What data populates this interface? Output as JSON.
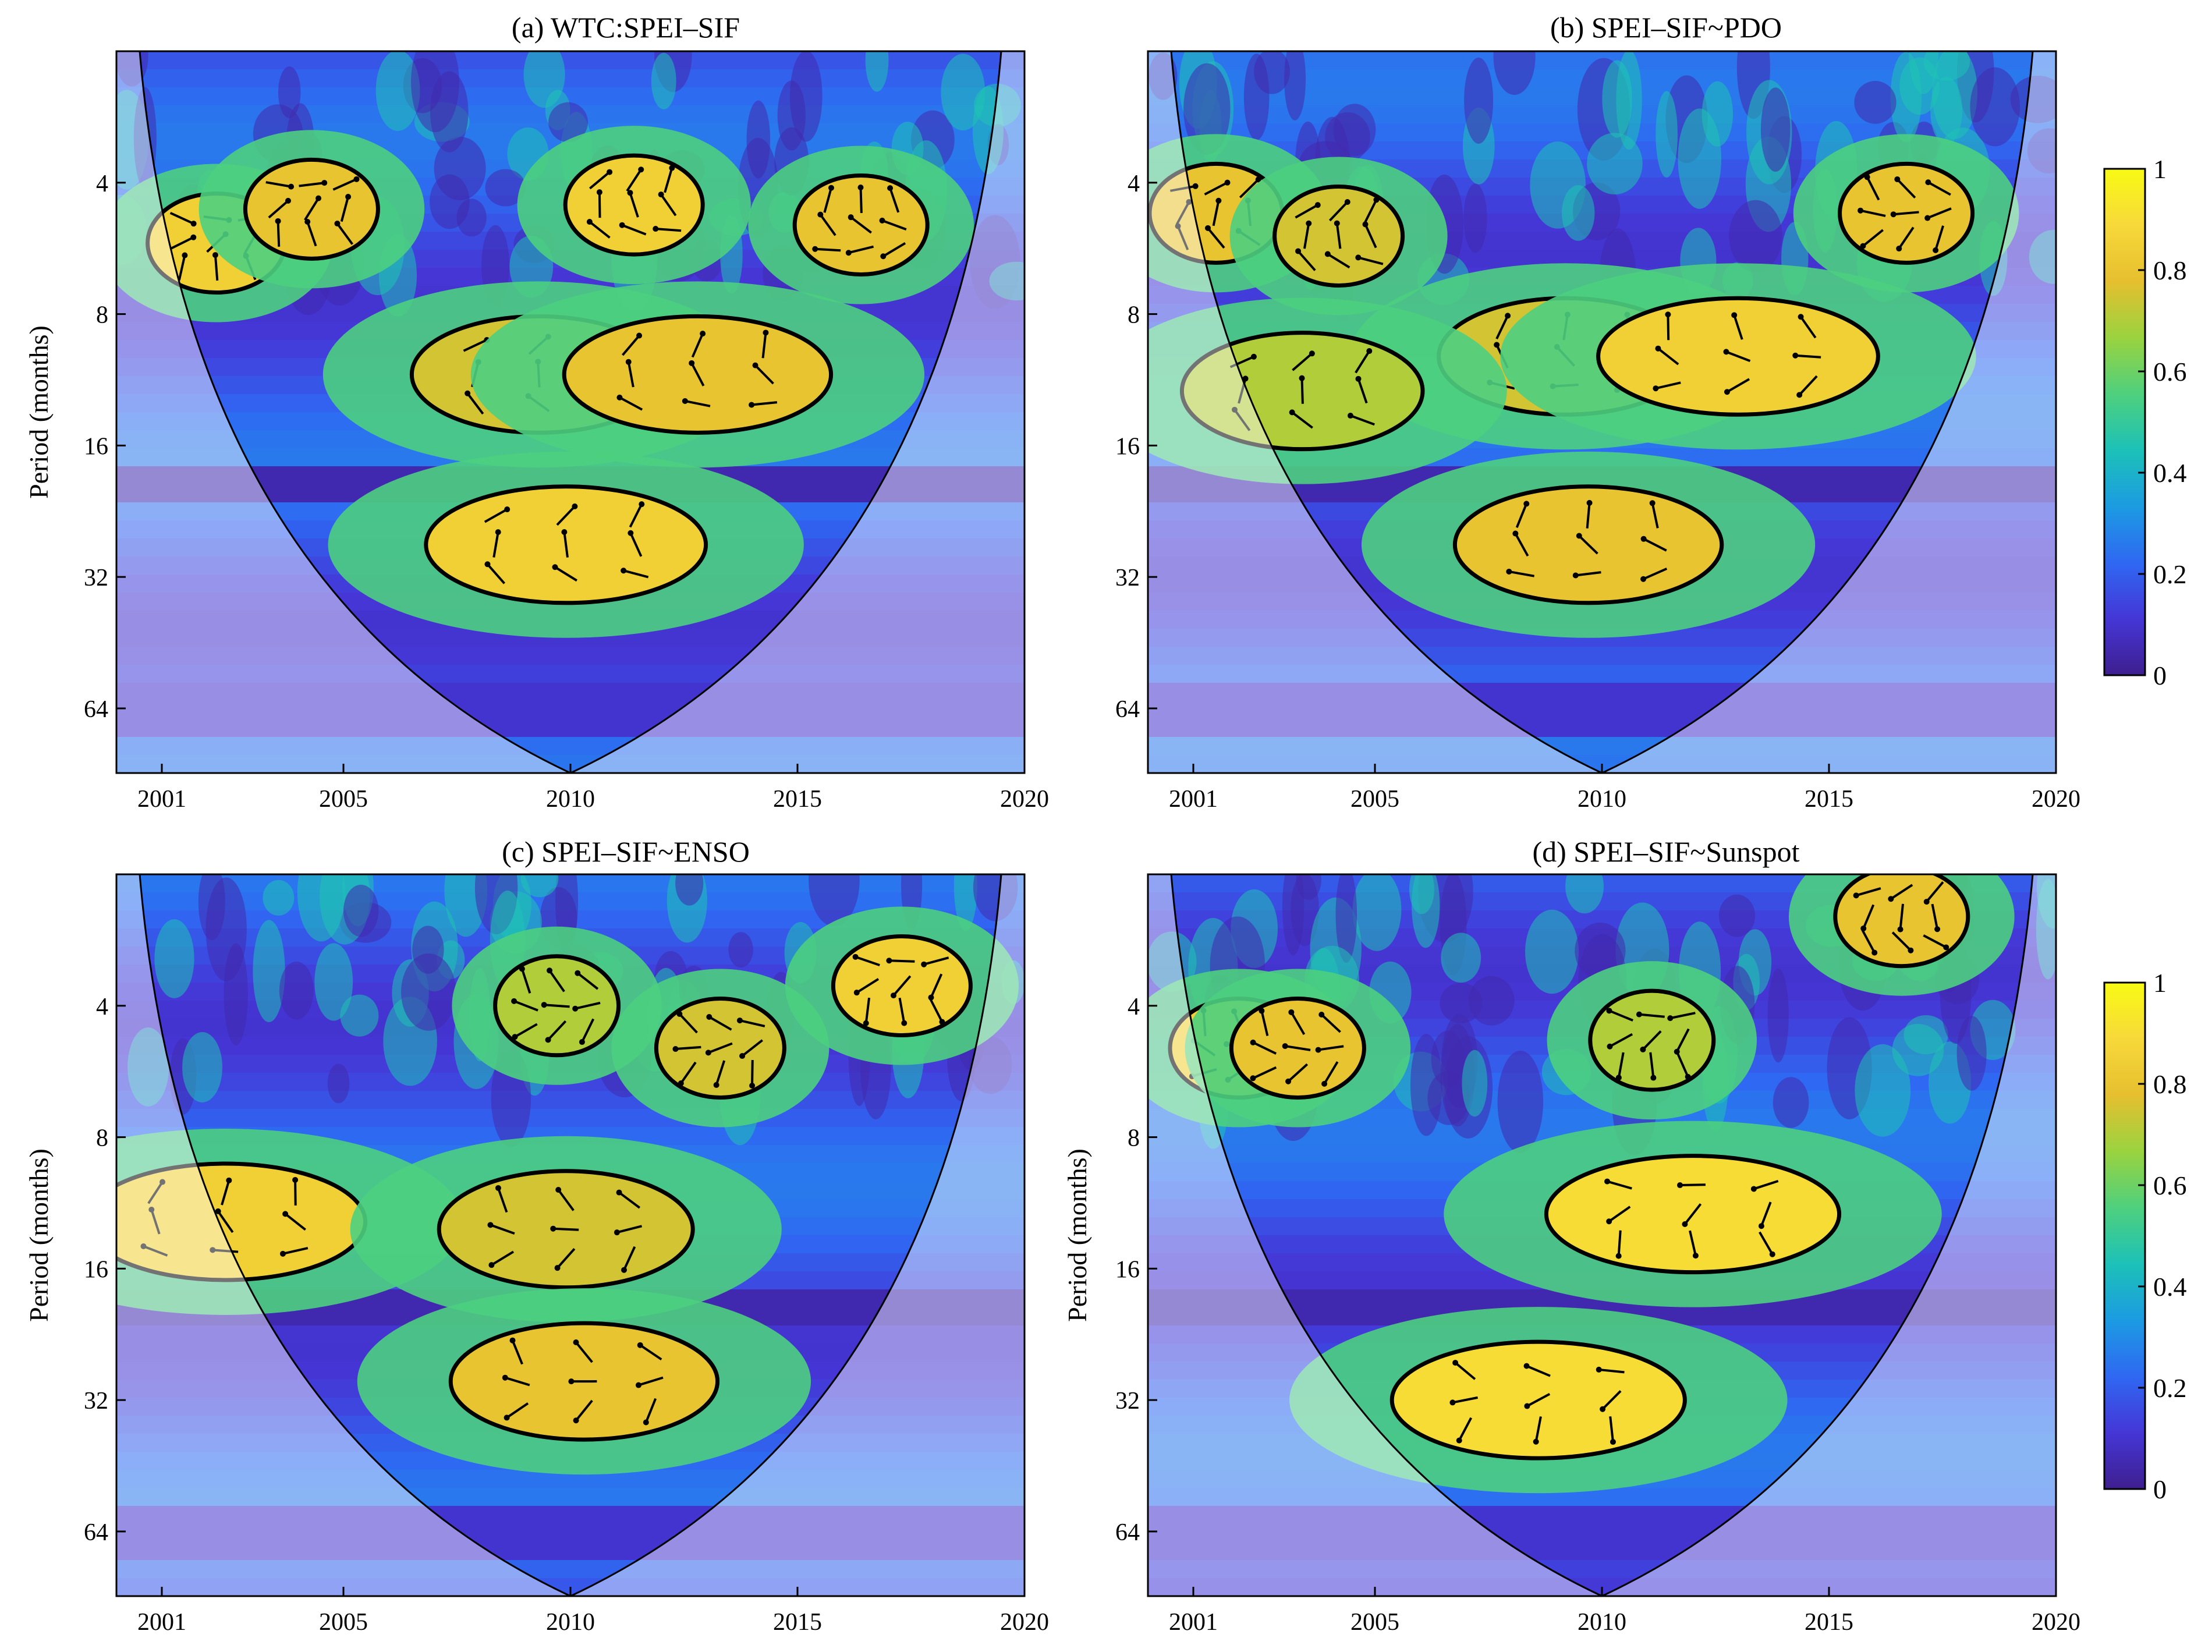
{
  "figure": {
    "colormap": [
      "#3e1f8f",
      "#4536d6",
      "#2f68f2",
      "#1c9be2",
      "#1cc1b8",
      "#4fd07d",
      "#9ad33f",
      "#e6bf2f",
      "#f7d93a",
      "#f8fa14"
    ],
    "arrow_color": "#000000",
    "outside_coi_arrow_color": "#888888",
    "contour_color": "#000000",
    "coi_line_color": "#000000"
  },
  "colorbar": {
    "ticks": [
      "1",
      "0.8",
      "0.6",
      "0.4",
      "0.2",
      "0"
    ]
  },
  "chart_data": [
    {
      "type": "heatmap",
      "title": "(a) WTC:SPEI–SIF",
      "ylabel": "Period (months)",
      "x_ticks": [
        "2001",
        "2005",
        "2010",
        "2015",
        "2020"
      ],
      "x_tick_values": [
        2001,
        2005,
        2010,
        2015,
        2020
      ],
      "xlim": [
        2000,
        2020
      ],
      "y_ticks": [
        "4",
        "8",
        "16",
        "32",
        "64"
      ],
      "y_tick_values": [
        4,
        8,
        16,
        32,
        64
      ],
      "ylim": [
        2,
        90
      ],
      "y_scale": "log2",
      "zlim": [
        0,
        1
      ],
      "significant_regions": [
        {
          "x": 2002.2,
          "period": 5.5,
          "strength": 0.85
        },
        {
          "x": 2004.3,
          "period": 4.6,
          "strength": 0.8
        },
        {
          "x": 2011.4,
          "period": 4.5,
          "strength": 0.85
        },
        {
          "x": 2016.4,
          "period": 5.0,
          "strength": 0.8
        },
        {
          "x": 2009.3,
          "period": 11.0,
          "strength": 0.75
        },
        {
          "x": 2012.8,
          "period": 11.0,
          "strength": 0.8
        },
        {
          "x": 2009.9,
          "period": 27.0,
          "strength": 0.85
        }
      ]
    },
    {
      "type": "heatmap",
      "title": "(b) SPEI–SIF~PDO",
      "ylabel": "",
      "x_ticks": [
        "2001",
        "2005",
        "2010",
        "2015",
        "2020"
      ],
      "x_tick_values": [
        2001,
        2005,
        2010,
        2015,
        2020
      ],
      "xlim": [
        2000,
        2020
      ],
      "y_ticks": [
        "4",
        "8",
        "16",
        "32",
        "64"
      ],
      "y_tick_values": [
        4,
        8,
        16,
        32,
        64
      ],
      "ylim": [
        2,
        90
      ],
      "y_scale": "log2",
      "zlim": [
        0,
        1
      ],
      "significant_regions": [
        {
          "x": 2001.5,
          "period": 4.7,
          "strength": 0.8
        },
        {
          "x": 2004.2,
          "period": 5.3,
          "strength": 0.75
        },
        {
          "x": 2016.7,
          "period": 4.7,
          "strength": 0.8
        },
        {
          "x": 2009.2,
          "period": 10.0,
          "strength": 0.75
        },
        {
          "x": 2013.0,
          "period": 10.0,
          "strength": 0.85
        },
        {
          "x": 2003.4,
          "period": 12.0,
          "strength": 0.7
        },
        {
          "x": 2009.7,
          "period": 27.0,
          "strength": 0.8
        }
      ]
    },
    {
      "type": "heatmap",
      "title": "(c) SPEI–SIF~ENSO",
      "ylabel": "Period (months)",
      "x_ticks": [
        "2001",
        "2005",
        "2010",
        "2015",
        "2020"
      ],
      "x_tick_values": [
        2001,
        2005,
        2010,
        2015,
        2020
      ],
      "xlim": [
        2000,
        2020
      ],
      "y_ticks": [
        "4",
        "8",
        "16",
        "32",
        "64"
      ],
      "y_tick_values": [
        4,
        8,
        16,
        32,
        64
      ],
      "ylim": [
        2,
        90
      ],
      "y_scale": "log2",
      "zlim": [
        0,
        1
      ],
      "significant_regions": [
        {
          "x": 2002.4,
          "period": 12.5,
          "strength": 0.85
        },
        {
          "x": 2017.3,
          "period": 3.6,
          "strength": 0.85
        },
        {
          "x": 2013.3,
          "period": 5.0,
          "strength": 0.75
        },
        {
          "x": 2009.7,
          "period": 4.0,
          "strength": 0.7
        },
        {
          "x": 2009.9,
          "period": 13.0,
          "strength": 0.75
        },
        {
          "x": 2010.3,
          "period": 29.0,
          "strength": 0.8
        }
      ]
    },
    {
      "type": "heatmap",
      "title": "(d) SPEI–SIF~Sunspot",
      "ylabel": "Period (months)",
      "x_ticks": [
        "2001",
        "2005",
        "2010",
        "2015",
        "2020"
      ],
      "x_tick_values": [
        2001,
        2005,
        2010,
        2015,
        2020
      ],
      "xlim": [
        2000,
        2020
      ],
      "y_ticks": [
        "4",
        "8",
        "16",
        "32",
        "64"
      ],
      "y_tick_values": [
        4,
        8,
        16,
        32,
        64
      ],
      "ylim": [
        2,
        90
      ],
      "y_scale": "log2",
      "zlim": [
        0,
        1
      ],
      "significant_regions": [
        {
          "x": 2002.0,
          "period": 5.0,
          "strength": 0.85
        },
        {
          "x": 2003.3,
          "period": 5.0,
          "strength": 0.8
        },
        {
          "x": 2016.6,
          "period": 2.5,
          "strength": 0.8
        },
        {
          "x": 2011.1,
          "period": 4.8,
          "strength": 0.7
        },
        {
          "x": 2012.0,
          "period": 12.0,
          "strength": 0.9
        },
        {
          "x": 2008.6,
          "period": 32.0,
          "strength": 0.9
        }
      ]
    }
  ]
}
